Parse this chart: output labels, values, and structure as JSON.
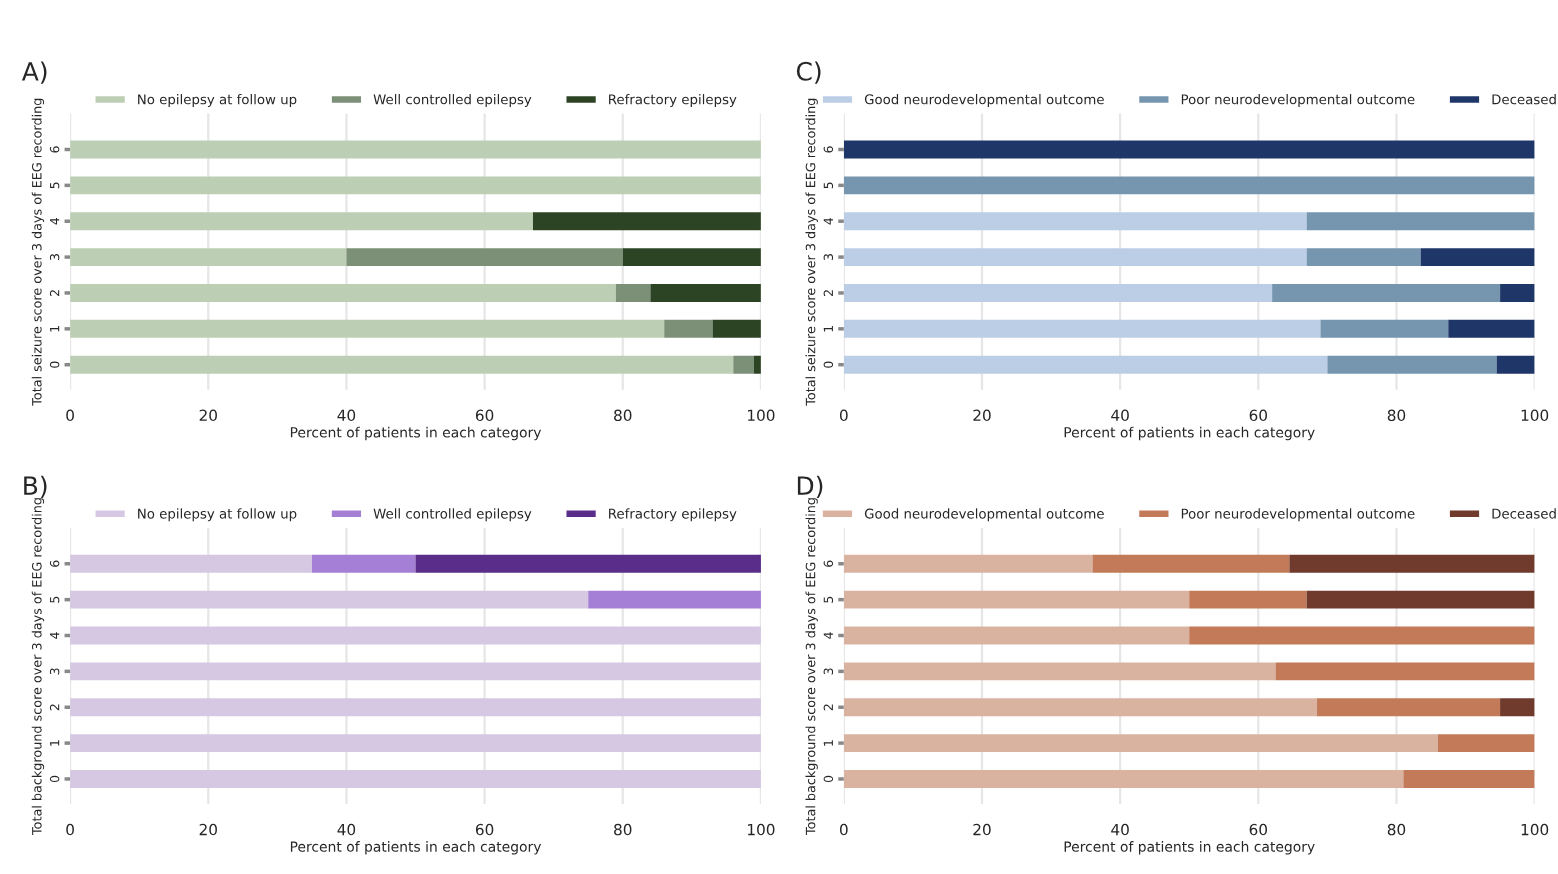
{
  "chart_data": [
    {
      "type": "bar",
      "orientation": "horizontal",
      "stacked": true,
      "title": "A)",
      "xlabel": "Percent of patients in each category",
      "ylabel": "Total seizure score over 3 days of EEG recording",
      "categories": [
        "6",
        "5",
        "4",
        "3",
        "2",
        "1",
        "0"
      ],
      "xlim": [
        0,
        100
      ],
      "xticks": [
        0,
        20,
        40,
        60,
        80,
        100
      ],
      "grid": "x",
      "legend": "top",
      "series": [
        {
          "name": "No epilepsy at follow up",
          "color": "#bccfb4",
          "values": [
            100,
            100,
            67,
            40,
            79,
            86,
            96
          ]
        },
        {
          "name": "Well controlled epilepsy",
          "color": "#7b9077",
          "values": [
            0,
            0,
            0,
            40,
            5,
            7,
            3
          ]
        },
        {
          "name": "Refractory epilepsy",
          "color": "#2c4423",
          "values": [
            0,
            0,
            33,
            20,
            16,
            7,
            1
          ]
        }
      ]
    },
    {
      "type": "bar",
      "orientation": "horizontal",
      "stacked": true,
      "title": "C)",
      "xlabel": "Percent of patients in each category",
      "ylabel": "Total seizure score over 3 days of EEG recording",
      "categories": [
        "6",
        "5",
        "4",
        "3",
        "2",
        "1",
        "0"
      ],
      "xlim": [
        0,
        100
      ],
      "xticks": [
        0,
        20,
        40,
        60,
        80,
        100
      ],
      "grid": "x",
      "legend": "top",
      "series": [
        {
          "name": "Good neurodevelopmental outcome",
          "color": "#bccde6",
          "values": [
            0,
            0,
            67,
            67,
            62,
            69,
            70
          ]
        },
        {
          "name": "Poor neurodevelopmental outcome",
          "color": "#7696b0",
          "values": [
            0,
            100,
            33,
            16.5,
            33,
            18.5,
            24.5
          ]
        },
        {
          "name": "Deceased",
          "color": "#1f3768",
          "values": [
            100,
            0,
            0,
            16.5,
            5,
            12.5,
            5.5
          ]
        }
      ]
    },
    {
      "type": "bar",
      "orientation": "horizontal",
      "stacked": true,
      "title": "B)",
      "xlabel": "Percent of patients in each category",
      "ylabel": "Total background score over 3 days of EEG recording",
      "categories": [
        "6",
        "5",
        "4",
        "3",
        "2",
        "1",
        "0"
      ],
      "xlim": [
        0,
        100
      ],
      "xticks": [
        0,
        20,
        40,
        60,
        80,
        100
      ],
      "grid": "x",
      "legend": "top",
      "series": [
        {
          "name": "No epilepsy at follow up",
          "color": "#d6c8e3",
          "values": [
            35,
            75,
            100,
            100,
            100,
            100,
            100
          ]
        },
        {
          "name": "Well controlled epilepsy",
          "color": "#a57fd6",
          "values": [
            15,
            25,
            0,
            0,
            0,
            0,
            0
          ]
        },
        {
          "name": "Refractory epilepsy",
          "color": "#5a2d8a",
          "values": [
            50,
            0,
            0,
            0,
            0,
            0,
            0
          ]
        }
      ]
    },
    {
      "type": "bar",
      "orientation": "horizontal",
      "stacked": true,
      "title": "D)",
      "xlabel": "Percent of patients in each category",
      "ylabel": "Total background score over 3 days of EEG recording",
      "categories": [
        "6",
        "5",
        "4",
        "3",
        "2",
        "1",
        "0"
      ],
      "xlim": [
        0,
        100
      ],
      "xticks": [
        0,
        20,
        40,
        60,
        80,
        100
      ],
      "grid": "x",
      "legend": "top",
      "series": [
        {
          "name": "Good neurodevelopmental outcome",
          "color": "#d9b3a0",
          "values": [
            36,
            50,
            50,
            62.5,
            68.5,
            86,
            81
          ]
        },
        {
          "name": "Poor neurodevelopmental outcome",
          "color": "#c27a58",
          "values": [
            28.5,
            17,
            50,
            37.5,
            26.5,
            14,
            19
          ]
        },
        {
          "name": "Deceased",
          "color": "#703a2c",
          "values": [
            35.5,
            33,
            0,
            0,
            5,
            0,
            0
          ]
        }
      ]
    }
  ]
}
